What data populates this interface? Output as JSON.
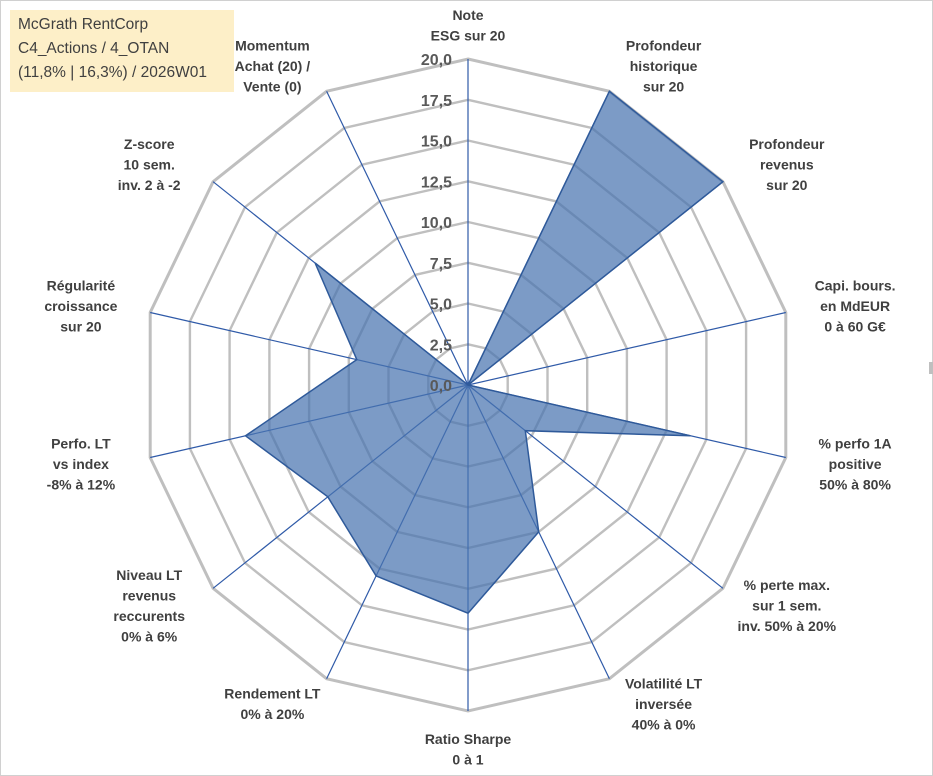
{
  "title": {
    "line1": "McGrath RentCorp",
    "line2": "C4_Actions / 4_OTAN",
    "line3": "(11,8% | 16,3%) / 2026W01"
  },
  "colors": {
    "fill": "#4a74b0",
    "edge": "#2f5a9a",
    "grid": "#bfbfbf",
    "spoke": "#2f5aa8",
    "title_bg": "#fdefc8"
  },
  "chart_data": {
    "type": "radar",
    "rmin": 0,
    "rmax": 20,
    "tick_step": 2.5,
    "tick_labels": [
      "0,0",
      "2,5",
      "5,0",
      "7,5",
      "10,0",
      "12,5",
      "15,0",
      "17,5",
      "20,0"
    ],
    "axes": [
      {
        "lines": [
          "Note",
          "ESG sur 20"
        ],
        "value": 0
      },
      {
        "lines": [
          "Profondeur",
          "historique",
          "sur 20"
        ],
        "value": 20
      },
      {
        "lines": [
          "Profondeur",
          "revenus",
          "sur 20"
        ],
        "value": 20
      },
      {
        "lines": [
          "Capi. bours.",
          "en MdEUR",
          "0 à 60 G€"
        ],
        "value": 0
      },
      {
        "lines": [
          "% perfo 1A",
          "positive",
          "50% à 80%"
        ],
        "value": 14
      },
      {
        "lines": [
          "% perte max.",
          "sur 1 sem.",
          "inv. 50% à 20%"
        ],
        "value": 4.5
      },
      {
        "lines": [
          "Volatilité LT",
          "inversée",
          "40% à 0%"
        ],
        "value": 10
      },
      {
        "lines": [
          "Ratio Sharpe",
          "0 à 1"
        ],
        "value": 14
      },
      {
        "lines": [
          "Rendement LT",
          "0% à 20%"
        ],
        "value": 13
      },
      {
        "lines": [
          "Niveau LT",
          "revenus",
          "reccurents",
          "0% à 6%"
        ],
        "value": 11
      },
      {
        "lines": [
          "Perfo. LT",
          "vs index",
          "-8% à 12%"
        ],
        "value": 14
      },
      {
        "lines": [
          "Régularité",
          "croissance",
          "sur 20"
        ],
        "value": 7
      },
      {
        "lines": [
          "Z-score",
          "10 sem.",
          "inv. 2 à -2"
        ],
        "value": 12
      },
      {
        "lines": [
          "Momentum",
          "Achat (20) /",
          "Vente (0)"
        ],
        "value": 0
      }
    ]
  }
}
